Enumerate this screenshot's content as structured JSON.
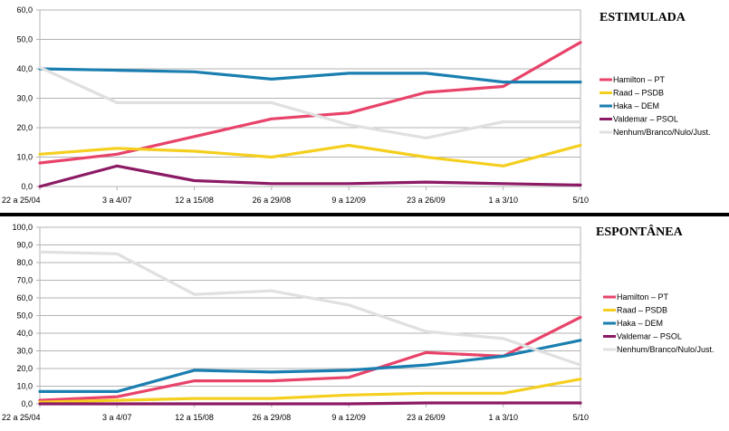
{
  "chart_data": [
    {
      "type": "line",
      "title": "ESTIMULADA",
      "categories": [
        "22 a 25/04",
        "3 a 4/07",
        "12 a 15/08",
        "26 a 29/08",
        "9 a 12/09",
        "23 a 26/09",
        "1 a 3/10",
        "5/10"
      ],
      "yticks": [
        "0,0",
        "10,0",
        "20,0",
        "30,0",
        "40,0",
        "50,0",
        "60,0"
      ],
      "ylim": [
        0,
        60
      ],
      "grid": true,
      "legend_position": "right",
      "series": [
        {
          "name": "Hamilton – PT",
          "color": "#e8436a",
          "values": [
            8,
            11,
            17,
            23,
            25,
            32,
            34,
            49
          ]
        },
        {
          "name": "Raad – PSDB",
          "color": "#f5cf1f",
          "values": [
            11,
            13,
            12,
            10,
            14,
            10,
            7,
            14
          ]
        },
        {
          "name": "Haka – DEM",
          "color": "#1a7fb0",
          "values": [
            40,
            39.5,
            39,
            36.5,
            38.5,
            38.5,
            35.5,
            35.5
          ]
        },
        {
          "name": "Valdemar – PSOL",
          "color": "#8c1a64",
          "values": [
            0,
            7,
            2,
            1,
            1,
            1.5,
            1,
            0.5
          ]
        },
        {
          "name": "Nenhum/Branco/Nulo/Just.",
          "color": "#e0e0e0",
          "values": [
            40.5,
            28.5,
            28.5,
            28.5,
            21,
            16.5,
            22,
            22
          ]
        }
      ]
    },
    {
      "type": "line",
      "title": "ESPONTÂNEA",
      "categories": [
        "22 a 25/04",
        "3 a 4/07",
        "12 a 15/08",
        "26 a 29/08",
        "9 a 12/09",
        "23 a 26/09",
        "1 a 3/10",
        "5/10"
      ],
      "yticks": [
        "0,0",
        "10,0",
        "20,0",
        "30,0",
        "40,0",
        "50,0",
        "60,0",
        "70,0",
        "80,0",
        "90,0",
        "100,0"
      ],
      "ylim": [
        0,
        100
      ],
      "grid": true,
      "legend_position": "right",
      "series": [
        {
          "name": "Hamilton – PT",
          "color": "#e8436a",
          "values": [
            2,
            4,
            13,
            13,
            15,
            29,
            27,
            49
          ]
        },
        {
          "name": "Raad – PSDB",
          "color": "#f5cf1f",
          "values": [
            1,
            2,
            3,
            3,
            5,
            6,
            6,
            14
          ]
        },
        {
          "name": "Haka – DEM",
          "color": "#1a7fb0",
          "values": [
            7,
            7,
            19,
            18,
            19,
            22,
            27,
            36
          ]
        },
        {
          "name": "Valdemar – PSOL",
          "color": "#8c1a64",
          "values": [
            0,
            0,
            0,
            0,
            0,
            0.5,
            0.5,
            0.5
          ]
        },
        {
          "name": "Nenhum/Branco/Nulo/Just.",
          "color": "#e0e0e0",
          "values": [
            86,
            85,
            62,
            64,
            56,
            41,
            37,
            22
          ]
        }
      ]
    }
  ]
}
